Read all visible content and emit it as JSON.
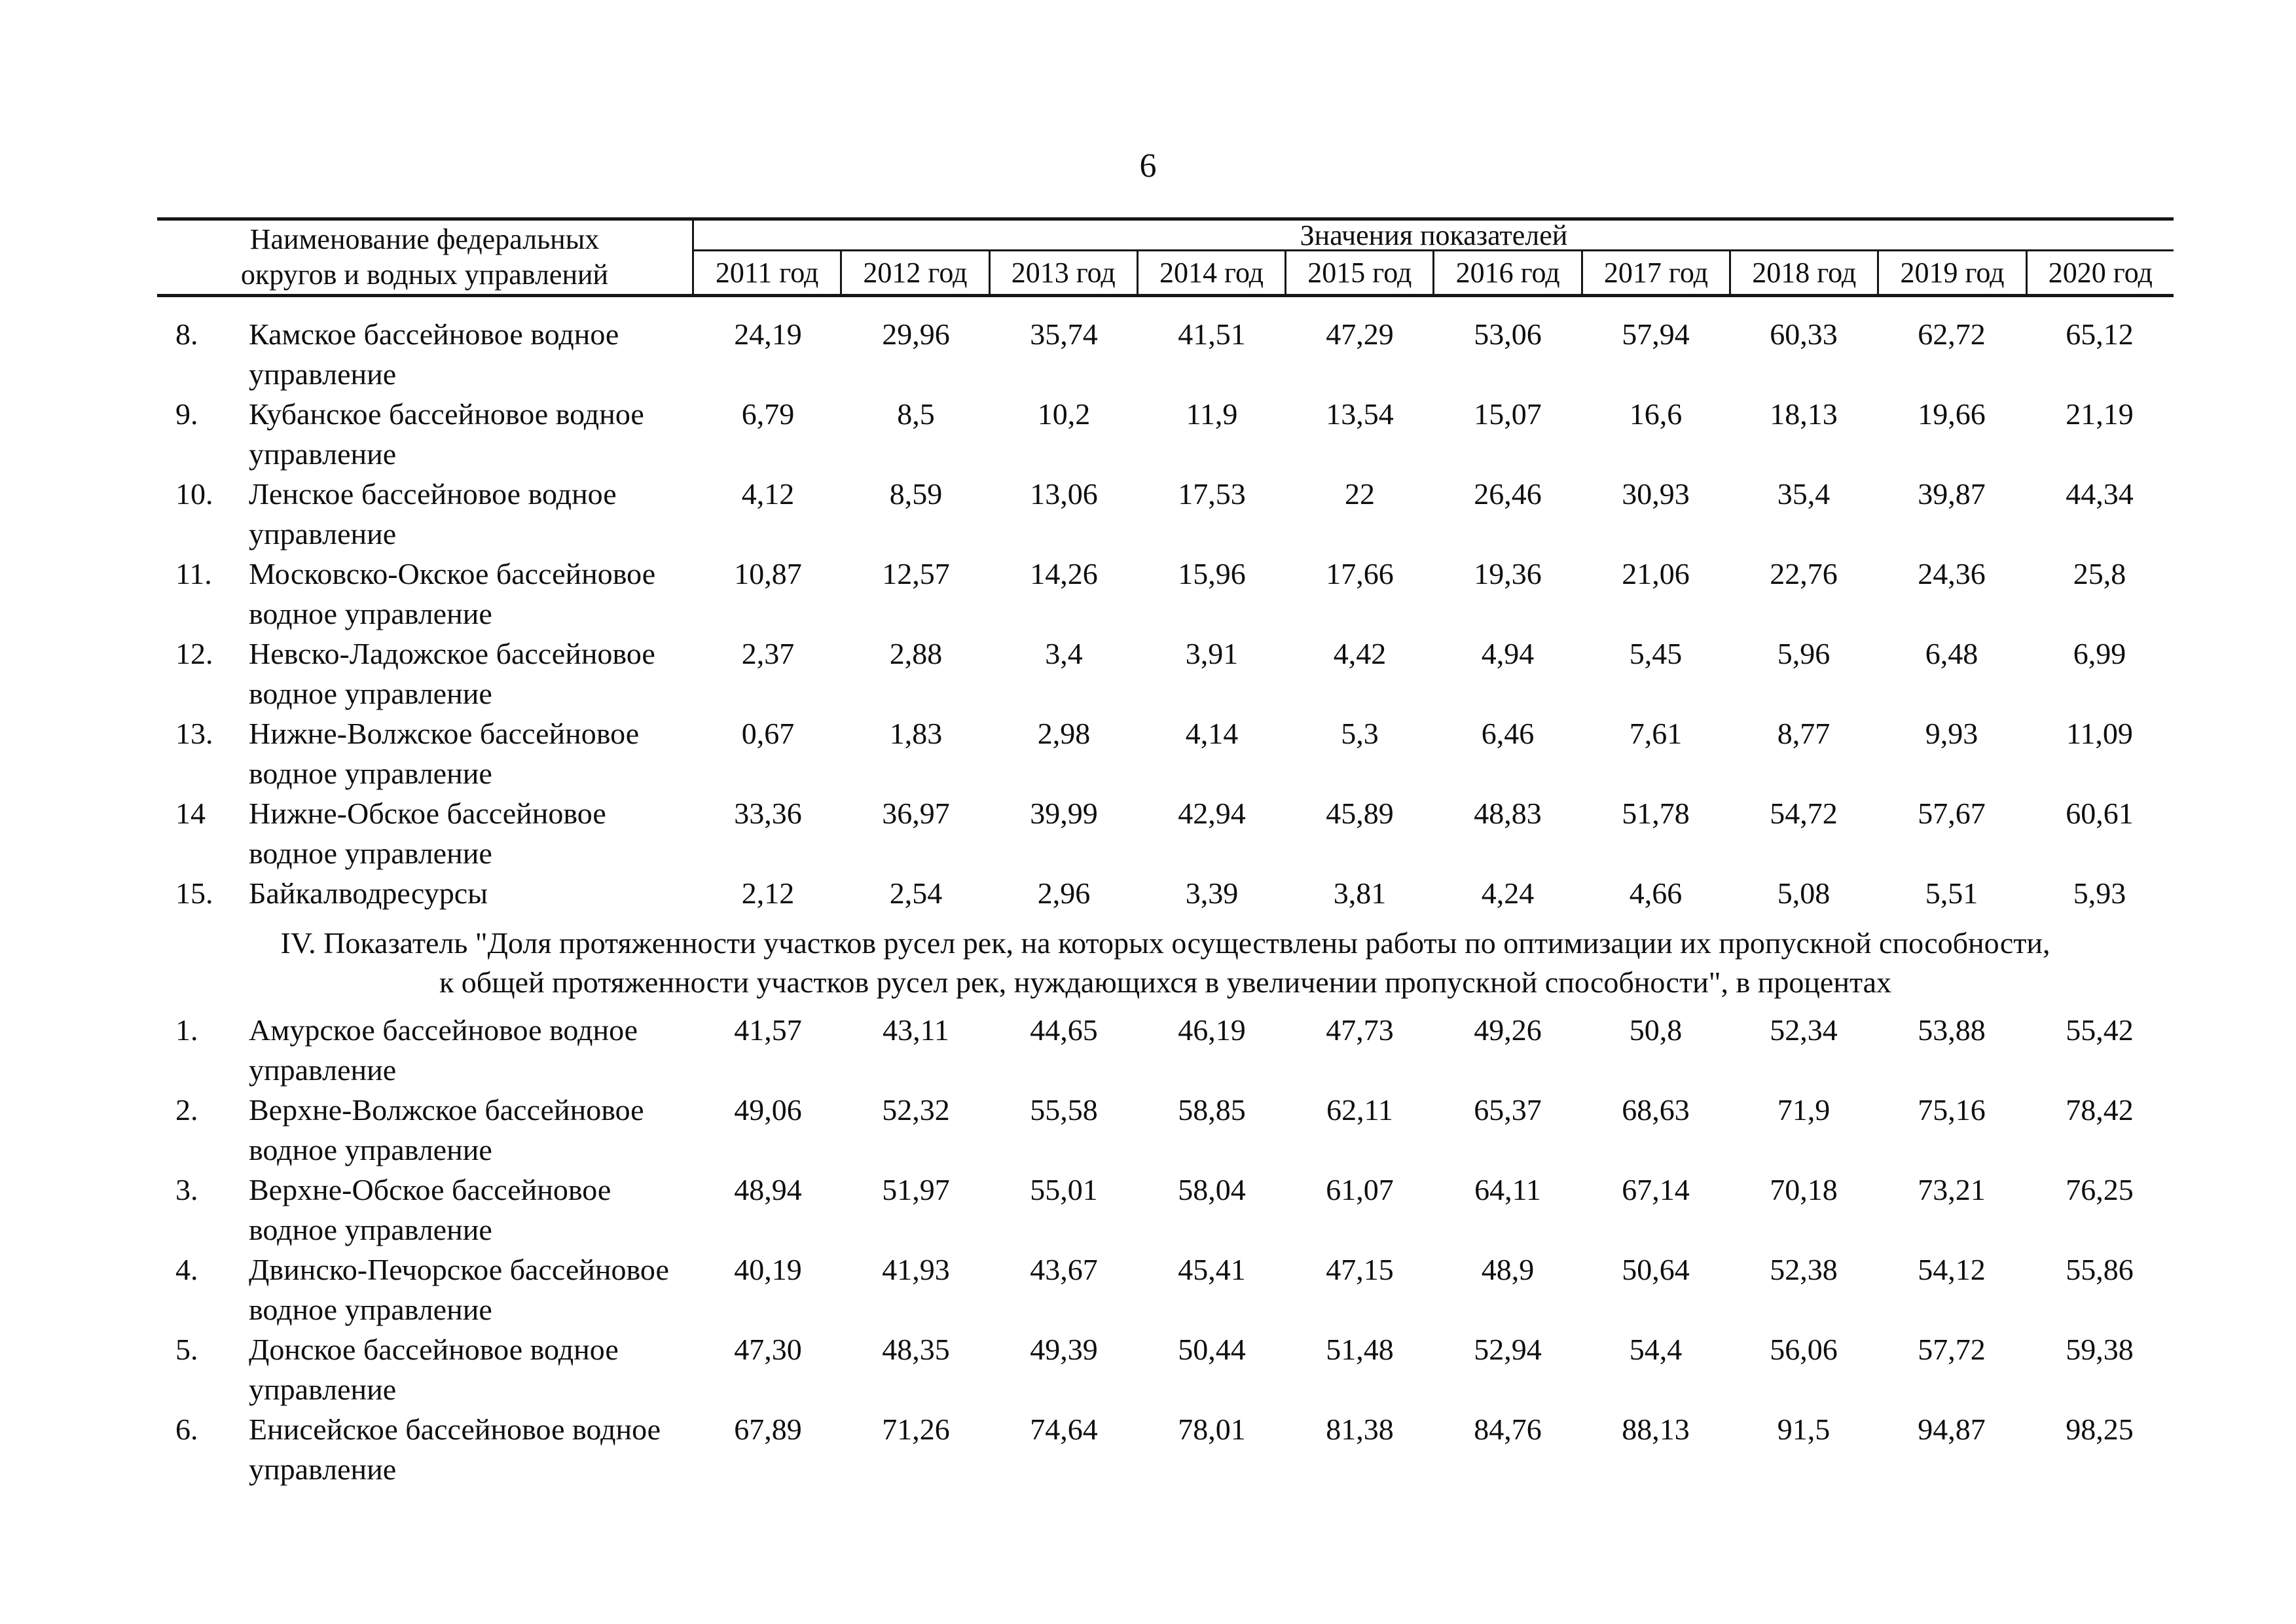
{
  "page_number": "6",
  "table": {
    "header": {
      "name_column_line1": "Наименование федеральных",
      "name_column_line2": "округов и водных управлений",
      "values_group": "Значения показателей",
      "years": [
        "2011 год",
        "2012 год",
        "2013 год",
        "2014 год",
        "2015 год",
        "2016 год",
        "2017 год",
        "2018 год",
        "2019 год",
        "2020 год"
      ]
    },
    "continued_rows": [
      {
        "num": "8.",
        "name_lines": [
          "Камское бассейновое водное",
          "управление"
        ],
        "values": [
          "24,19",
          "29,96",
          "35,74",
          "41,51",
          "47,29",
          "53,06",
          "57,94",
          "60,33",
          "62,72",
          "65,12"
        ]
      },
      {
        "num": "9.",
        "name_lines": [
          "Кубанское бассейновое водное",
          "управление"
        ],
        "values": [
          "6,79",
          "8,5",
          "10,2",
          "11,9",
          "13,54",
          "15,07",
          "16,6",
          "18,13",
          "19,66",
          "21,19"
        ]
      },
      {
        "num": "10.",
        "name_lines": [
          "Ленское бассейновое водное",
          "управление"
        ],
        "values": [
          "4,12",
          "8,59",
          "13,06",
          "17,53",
          "22",
          "26,46",
          "30,93",
          "35,4",
          "39,87",
          "44,34"
        ]
      },
      {
        "num": "11.",
        "name_lines": [
          "Московско-Окское бассейновое",
          "водное управление"
        ],
        "values": [
          "10,87",
          "12,57",
          "14,26",
          "15,96",
          "17,66",
          "19,36",
          "21,06",
          "22,76",
          "24,36",
          "25,8"
        ]
      },
      {
        "num": "12.",
        "name_lines": [
          "Невско-Ладожское бассейновое",
          "водное управление"
        ],
        "values": [
          "2,37",
          "2,88",
          "3,4",
          "3,91",
          "4,42",
          "4,94",
          "5,45",
          "5,96",
          "6,48",
          "6,99"
        ]
      },
      {
        "num": "13.",
        "name_lines": [
          "Нижне-Волжское бассейновое",
          "водное управление"
        ],
        "values": [
          "0,67",
          "1,83",
          "2,98",
          "4,14",
          "5,3",
          "6,46",
          "7,61",
          "8,77",
          "9,93",
          "11,09"
        ]
      },
      {
        "num": "14",
        "name_lines": [
          "Нижне-Обское бассейновое",
          "водное управление"
        ],
        "values": [
          "33,36",
          "36,97",
          "39,99",
          "42,94",
          "45,89",
          "48,83",
          "51,78",
          "54,72",
          "57,67",
          "60,61"
        ]
      },
      {
        "num": "15.",
        "name_lines": [
          "Байкалводресурсы"
        ],
        "values": [
          "2,12",
          "2,54",
          "2,96",
          "3,39",
          "3,81",
          "4,24",
          "4,66",
          "5,08",
          "5,51",
          "5,93"
        ]
      }
    ],
    "section4": {
      "title_line1": "IV. Показатель  \"Доля протяженности участков русел рек, на которых осуществлены работы по оптимизации их пропускной способности,",
      "title_line2": "к общей протяженности участков русел рек, нуждающихся в увеличении пропускной способности\", в процентах",
      "rows": [
        {
          "num": "1.",
          "name_lines": [
            "Амурское бассейновое водное",
            "управление"
          ],
          "values": [
            "41,57",
            "43,11",
            "44,65",
            "46,19",
            "47,73",
            "49,26",
            "50,8",
            "52,34",
            "53,88",
            "55,42"
          ]
        },
        {
          "num": "2.",
          "name_lines": [
            "Верхне-Волжское бассейновое",
            "водное управление"
          ],
          "values": [
            "49,06",
            "52,32",
            "55,58",
            "58,85",
            "62,11",
            "65,37",
            "68,63",
            "71,9",
            "75,16",
            "78,42"
          ]
        },
        {
          "num": "3.",
          "name_lines": [
            "Верхне-Обское бассейновое",
            "водное управление"
          ],
          "values": [
            "48,94",
            "51,97",
            "55,01",
            "58,04",
            "61,07",
            "64,11",
            "67,14",
            "70,18",
            "73,21",
            "76,25"
          ]
        },
        {
          "num": "4.",
          "name_lines": [
            "Двинско-Печорское бассейновое",
            "водное управление"
          ],
          "values": [
            "40,19",
            "41,93",
            "43,67",
            "45,41",
            "47,15",
            "48,9",
            "50,64",
            "52,38",
            "54,12",
            "55,86"
          ]
        },
        {
          "num": "5.",
          "name_lines": [
            "Донское бассейновое водное",
            "управление"
          ],
          "values": [
            "47,30",
            "48,35",
            "49,39",
            "50,44",
            "51,48",
            "52,94",
            "54,4",
            "56,06",
            "57,72",
            "59,38"
          ]
        },
        {
          "num": "6.",
          "name_lines": [
            "Енисейское бассейновое водное",
            "управление"
          ],
          "values": [
            "67,89",
            "71,26",
            "74,64",
            "78,01",
            "81,38",
            "84,76",
            "88,13",
            "91,5",
            "94,87",
            "98,25"
          ]
        }
      ]
    }
  }
}
